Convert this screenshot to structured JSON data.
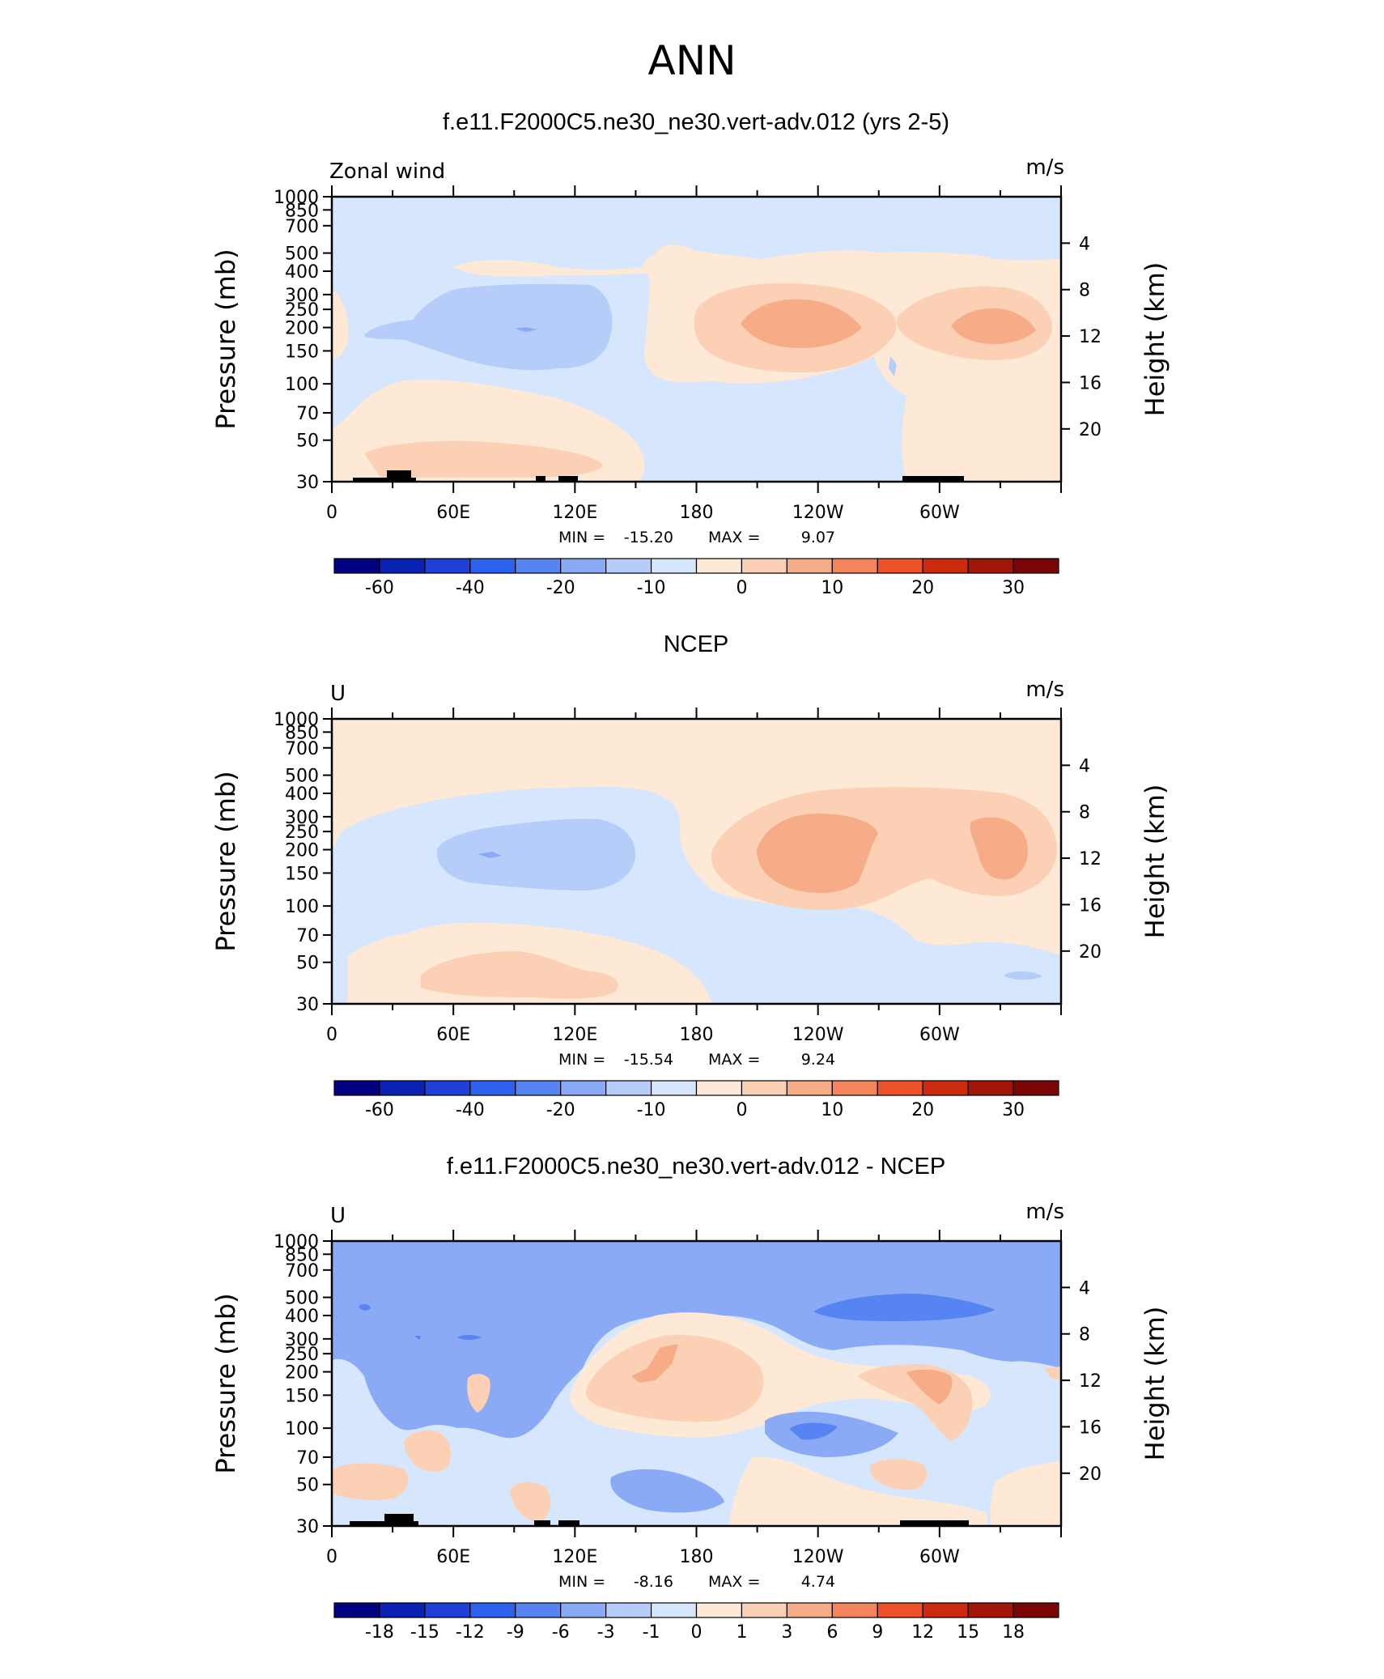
{
  "page_title": "ANN",
  "colors": {
    "main_scale": [
      "#000080",
      "#0a22b4",
      "#1e40d8",
      "#2d62ee",
      "#5684f2",
      "#8aaaf6",
      "#b6cdfa",
      "#d6e6fd",
      "#fde9d6",
      "#fbd0b4",
      "#f7ac88",
      "#f3845c",
      "#ec5128",
      "#cc2a0e",
      "#a11608",
      "#7a0505"
    ],
    "diff_scale": [
      "#000080",
      "#0a22b4",
      "#1e40d8",
      "#2d62ee",
      "#5684f2",
      "#8aaaf6",
      "#b6cdfa",
      "#d6e6fd",
      "#fde9d6",
      "#fbd0b4",
      "#f7ac88",
      "#f3845c",
      "#ec5128",
      "#cc2a0e",
      "#a11608",
      "#7a0505"
    ]
  },
  "chart_data": [
    {
      "type": "heatmap",
      "title": "f.e11.F2000C5.ne30_ne30.vert-adv.012 (yrs 2-5)",
      "variable_label": "Zonal wind",
      "units": "m/s",
      "xlabel": "",
      "ylabel": "Pressure (mb)",
      "ylabel_right": "Height (km)",
      "x_ticks": [
        "0",
        "60E",
        "120E",
        "180",
        "120W",
        "60W"
      ],
      "x_range": [
        0,
        360
      ],
      "y_ticks": [
        "30",
        "50",
        "70",
        "100",
        "150",
        "200",
        "250",
        "300",
        "400",
        "500",
        "700",
        "850",
        "1000"
      ],
      "y_range": [
        1000,
        30
      ],
      "height_ticks": [
        "20",
        "16",
        "12",
        "8",
        "4"
      ],
      "min_label": "MIN =",
      "min": "-15.20",
      "max_label": "MAX =",
      "max": "9.07",
      "colorbar_labels": [
        "-60",
        "-40",
        "-20",
        "-10",
        "0",
        "10",
        "20",
        "30"
      ],
      "colorbar_label_index": [
        1,
        3,
        5,
        7,
        9,
        11,
        13,
        15
      ],
      "colorbar_levels": [
        -70,
        -60,
        -50,
        -40,
        -30,
        -20,
        -15,
        -10,
        -5,
        0,
        5,
        10,
        15,
        20,
        25,
        30,
        35
      ]
    },
    {
      "type": "heatmap",
      "title": "NCEP",
      "variable_label": "U",
      "units": "m/s",
      "xlabel": "",
      "ylabel": "Pressure (mb)",
      "ylabel_right": "Height (km)",
      "x_ticks": [
        "0",
        "60E",
        "120E",
        "180",
        "120W",
        "60W"
      ],
      "x_range": [
        0,
        360
      ],
      "y_ticks": [
        "30",
        "50",
        "70",
        "100",
        "150",
        "200",
        "250",
        "300",
        "400",
        "500",
        "700",
        "850",
        "1000"
      ],
      "y_range": [
        1000,
        30
      ],
      "height_ticks": [
        "20",
        "16",
        "12",
        "8",
        "4"
      ],
      "min_label": "MIN =",
      "min": "-15.54",
      "max_label": "MAX =",
      "max": "9.24",
      "colorbar_labels": [
        "-60",
        "-40",
        "-20",
        "-10",
        "0",
        "10",
        "20",
        "30"
      ],
      "colorbar_label_index": [
        1,
        3,
        5,
        7,
        9,
        11,
        13,
        15
      ],
      "colorbar_levels": [
        -70,
        -60,
        -50,
        -40,
        -30,
        -20,
        -15,
        -10,
        -5,
        0,
        5,
        10,
        15,
        20,
        25,
        30,
        35
      ]
    },
    {
      "type": "heatmap",
      "title": "f.e11.F2000C5.ne30_ne30.vert-adv.012 - NCEP",
      "variable_label": "U",
      "units": "m/s",
      "xlabel": "",
      "ylabel": "Pressure (mb)",
      "ylabel_right": "Height (km)",
      "x_ticks": [
        "0",
        "60E",
        "120E",
        "180",
        "120W",
        "60W"
      ],
      "x_range": [
        0,
        360
      ],
      "y_ticks": [
        "30",
        "50",
        "70",
        "100",
        "150",
        "200",
        "250",
        "300",
        "400",
        "500",
        "700",
        "850",
        "1000"
      ],
      "y_range": [
        1000,
        30
      ],
      "height_ticks": [
        "20",
        "16",
        "12",
        "8",
        "4"
      ],
      "min_label": "MIN =",
      "min": "-8.16",
      "max_label": "MAX =",
      "max": "4.74",
      "colorbar_labels": [
        "-18",
        "-15",
        "-12",
        "-9",
        "-6",
        "-3",
        "-1",
        "0",
        "1",
        "3",
        "6",
        "9",
        "12",
        "15",
        "18"
      ],
      "colorbar_label_index": [
        1,
        2,
        3,
        4,
        5,
        6,
        7,
        8,
        9,
        10,
        11,
        12,
        13,
        14,
        15
      ],
      "colorbar_levels": [
        -21,
        -18,
        -15,
        -12,
        -9,
        -6,
        -3,
        -1,
        0,
        1,
        3,
        6,
        9,
        12,
        15,
        18,
        21
      ]
    }
  ]
}
